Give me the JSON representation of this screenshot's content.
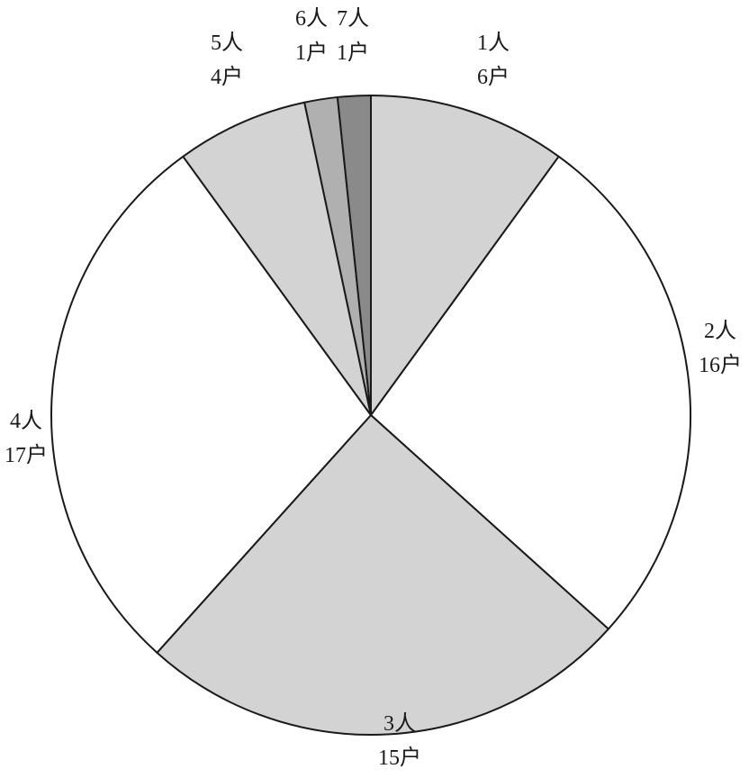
{
  "chart_data": {
    "type": "pie",
    "start_angle": "12 o'clock",
    "direction": "clockwise",
    "slices": [
      {
        "label": "1人",
        "value": 6,
        "value_label": "6户",
        "color": "#d3d3d3"
      },
      {
        "label": "2人",
        "value": 16,
        "value_label": "16户",
        "color": "#ffffff"
      },
      {
        "label": "3人",
        "value": 15,
        "value_label": "15户",
        "color": "#d3d3d3"
      },
      {
        "label": "4人",
        "value": 17,
        "value_label": "17户",
        "color": "#ffffff"
      },
      {
        "label": "5人",
        "value": 4,
        "value_label": "4户",
        "color": "#d3d3d3"
      },
      {
        "label": "6人",
        "value": 1,
        "value_label": "1户",
        "color": "#b0b0b0"
      },
      {
        "label": "7人",
        "value": 1,
        "value_label": "1户",
        "color": "#8a8a8a"
      }
    ]
  }
}
